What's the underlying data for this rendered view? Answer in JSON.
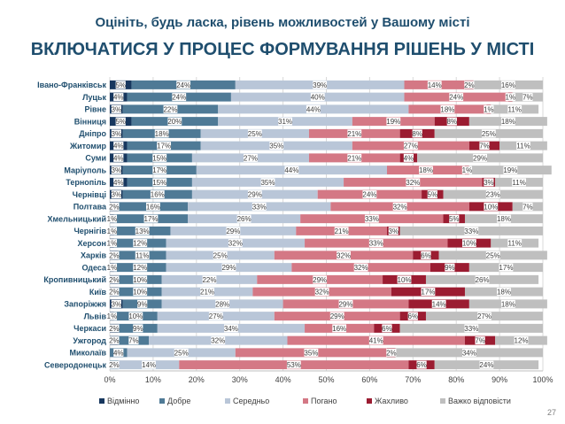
{
  "page": {
    "subtitle": "Оцініть, будь ласка, рівень можливостей у Вашому місті",
    "title": "ВКЛЮЧАТИСЯ У ПРОЦЕС ФОРМУВАННЯ РІШЕНЬ У МІСТІ",
    "page_number": "27"
  },
  "colors": {
    "background": "#ffffff",
    "title": "#1f4e6e",
    "grid": "#d9d9d9"
  },
  "chart_data": {
    "type": "bar",
    "orientation": "horizontal",
    "stacked": true,
    "xlim": [
      0,
      100
    ],
    "x_ticks": [
      "0%",
      "10%",
      "20%",
      "30%",
      "40%",
      "50%",
      "60%",
      "70%",
      "80%",
      "90%",
      "100%"
    ],
    "legend_position": "bottom",
    "categories": [
      "Івано-Франківськ",
      "Луцьк",
      "Рівне",
      "Вінниця",
      "Дніпро",
      "Житомир",
      "Суми",
      "Маріуполь",
      "Тернопіль",
      "Чернівці",
      "Полтава",
      "Хмельницький",
      "Чернігів",
      "Херсон",
      "Харків",
      "Одеса",
      "Кропивницький",
      "Київ",
      "Запоріжжя",
      "Львів",
      "Черкаси",
      "Ужгород",
      "Миколаїв",
      "Северодонецьк"
    ],
    "series": [
      {
        "name": "Відмінно",
        "color": "#17375e",
        "labels": [
          "5%",
          "4%",
          "3%",
          "5%",
          "3%",
          "4%",
          "4%",
          "3%",
          "4%",
          "3%",
          "2%",
          "1%",
          "1%",
          "1%",
          "2%",
          "1%",
          "2%",
          "2%",
          "3%",
          "1%",
          "2%",
          "2%",
          "",
          ""
        ],
        "values": [
          5,
          4,
          3,
          5,
          3,
          4,
          4,
          3,
          4,
          3,
          2,
          1,
          1,
          1,
          2,
          1,
          2,
          2,
          3,
          1,
          2,
          2,
          0,
          0
        ]
      },
      {
        "name": "Добре",
        "color": "#4f7a96",
        "labels": [
          "24%",
          "24%",
          "22%",
          "20%",
          "18%",
          "17%",
          "15%",
          "17%",
          "15%",
          "16%",
          "16%",
          "17%",
          "13%",
          "12%",
          "11%",
          "12%",
          "10%",
          "10%",
          "9%",
          "10%",
          "9%",
          "7%",
          "4%",
          "2%"
        ],
        "values": [
          24,
          24,
          22,
          20,
          18,
          17,
          15,
          17,
          15,
          16,
          16,
          17,
          13,
          12,
          11,
          12,
          10,
          10,
          9,
          10,
          9,
          7,
          4,
          2
        ]
      },
      {
        "name": "Середньо",
        "color": "#b9c6d8",
        "labels": [
          "39%",
          "40%",
          "44%",
          "31%",
          "25%",
          "35%",
          "27%",
          "44%",
          "35%",
          "29%",
          "33%",
          "26%",
          "29%",
          "32%",
          "25%",
          "29%",
          "22%",
          "21%",
          "28%",
          "27%",
          "34%",
          "32%",
          "25%",
          "14%"
        ],
        "values": [
          39,
          40,
          44,
          31,
          25,
          35,
          27,
          44,
          35,
          29,
          33,
          26,
          29,
          32,
          25,
          29,
          22,
          21,
          28,
          27,
          34,
          32,
          25,
          14
        ]
      },
      {
        "name": "Погано",
        "color": "#d47885",
        "labels": [
          "14%",
          "24%",
          "18%",
          "19%",
          "21%",
          "27%",
          "21%",
          "18%",
          "32%",
          "24%",
          "32%",
          "33%",
          "21%",
          "33%",
          "32%",
          "32%",
          "29%",
          "32%",
          "29%",
          "29%",
          "16%",
          "41%",
          "35%",
          "53%"
        ],
        "values": [
          14,
          24,
          18,
          19,
          21,
          27,
          21,
          18,
          32,
          24,
          32,
          33,
          21,
          33,
          32,
          32,
          29,
          32,
          29,
          29,
          16,
          41,
          35,
          53
        ]
      },
      {
        "name": "Жахливо",
        "color": "#9b1c31",
        "labels": [
          "2%",
          "1%",
          "1%",
          "8%",
          "8%",
          "7%",
          "4%",
          "1%",
          "3%",
          "5%",
          "10%",
          "5%",
          "3%",
          "10%",
          "6%",
          "9%",
          "10%",
          "17%",
          "14%",
          "6%",
          "6%",
          "7%",
          "2%",
          "6%"
        ],
        "values": [
          2,
          1,
          1,
          8,
          8,
          7,
          4,
          1,
          3,
          5,
          10,
          5,
          3,
          10,
          6,
          9,
          10,
          17,
          14,
          6,
          6,
          7,
          2,
          6
        ]
      },
      {
        "name": "Важко відповісти",
        "color": "#bfbfbf",
        "labels": [
          "16%",
          "7%",
          "11%",
          "18%",
          "25%",
          "11%",
          "29%",
          "19%",
          "11%",
          "23%",
          "7%",
          "18%",
          "33%",
          "11%",
          "25%",
          "17%",
          "26%",
          "18%",
          "18%",
          "27%",
          "33%",
          "12%",
          "34%",
          "24%"
        ],
        "values": [
          16,
          7,
          11,
          18,
          25,
          11,
          29,
          19,
          11,
          23,
          7,
          18,
          33,
          11,
          25,
          17,
          26,
          18,
          18,
          27,
          33,
          12,
          34,
          24
        ]
      }
    ]
  }
}
